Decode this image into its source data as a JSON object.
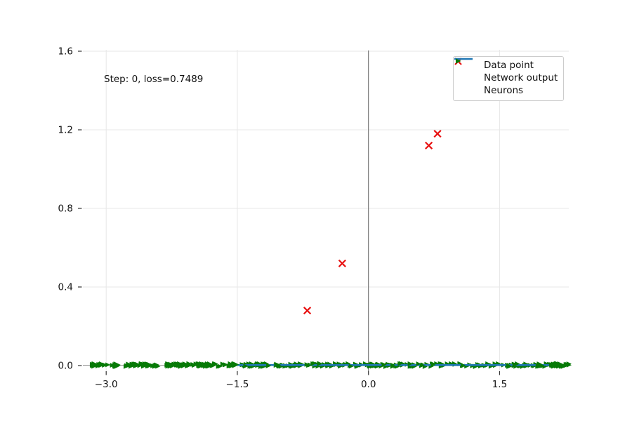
{
  "chart_data": {
    "type": "scatter",
    "title": "",
    "annotation": "Step: 0, loss=0.7489",
    "xlabel": "",
    "ylabel": "",
    "xlim": [
      -3.27,
      2.29
    ],
    "ylim": [
      -0.03,
      1.61
    ],
    "grid": true,
    "x_ticks": [
      {
        "value": -3.0,
        "label": "−3.0"
      },
      {
        "value": -1.5,
        "label": "−1.5"
      },
      {
        "value": 0.0,
        "label": "0.0"
      },
      {
        "value": 1.5,
        "label": "1.5"
      }
    ],
    "y_ticks": [
      {
        "value": 0.0,
        "label": "0.0"
      },
      {
        "value": 0.4,
        "label": "0.4"
      },
      {
        "value": 0.8,
        "label": "0.8"
      },
      {
        "value": 1.2,
        "label": "1.2"
      },
      {
        "value": 1.6,
        "label": "1.6"
      }
    ],
    "reference_lines": {
      "vertical_x": 0.0,
      "horizontal_y": 0.0,
      "color_vertical": "#666666",
      "color_horizontal": "#999999"
    },
    "series": {
      "data_points": {
        "name": "Data point",
        "marker": "x",
        "color": "#e81111",
        "points": [
          [
            0.79,
            1.18
          ],
          [
            0.69,
            1.12
          ],
          [
            -0.3,
            0.52
          ],
          [
            -0.7,
            0.28
          ]
        ]
      },
      "network_output": {
        "name": "Network output",
        "color": "#1f77b4",
        "description": "flat line at y = 0 across the x range",
        "y": 0.0,
        "x_start": -3.24,
        "x_end": 2.29
      },
      "neurons": {
        "name": "Neurons",
        "marker": "triangle-right",
        "color": "#077a07",
        "description": "dense clustered scatter of right-pointing triangles along y = 0",
        "y": 0.0,
        "x_start": -3.24,
        "x_end": 2.29,
        "count": 400
      }
    },
    "legend": {
      "position": "upper right",
      "entries": [
        {
          "label": "Data point"
        },
        {
          "label": "Network output"
        },
        {
          "label": "Neurons"
        }
      ]
    }
  }
}
